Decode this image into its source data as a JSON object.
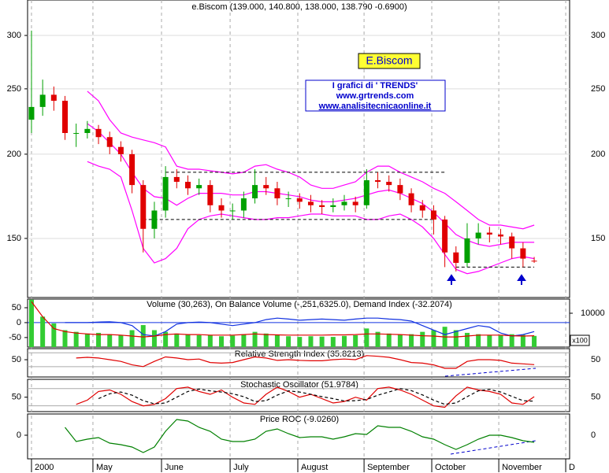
{
  "chart_data": [
    {
      "type": "candlestick",
      "title": "e.Biscom (139.000, 140.800, 138.000, 138.790 -0.6900)",
      "categories": [
        null,
        null,
        null,
        null,
        null,
        null,
        null,
        null,
        null,
        null,
        null,
        null,
        null,
        null,
        null,
        null,
        null,
        null,
        null,
        null,
        null,
        null,
        null,
        null,
        null,
        null,
        null,
        null,
        null,
        null,
        null,
        null,
        null,
        null,
        null,
        null,
        null,
        null,
        null,
        null,
        null,
        null,
        null,
        null,
        null,
        null
      ],
      "open": [
        225,
        235,
        245,
        240,
        215,
        215,
        218,
        212,
        205,
        200,
        180,
        155,
        165,
        185,
        182,
        178,
        180,
        168,
        165,
        165,
        172,
        180,
        178,
        172,
        172,
        170,
        168,
        167,
        168,
        170,
        168,
        183,
        182,
        180,
        175,
        168,
        165,
        160,
        143,
        138,
        150,
        153,
        152,
        151,
        145,
        139
      ],
      "high": [
        305,
        258,
        252,
        244,
        222,
        224,
        221,
        216,
        209,
        203,
        183,
        170,
        192,
        190,
        186,
        184,
        183,
        172,
        169,
        176,
        190,
        185,
        182,
        176,
        175,
        174,
        171,
        172,
        174,
        173,
        190,
        188,
        186,
        184,
        178,
        171,
        168,
        162,
        146,
        158,
        158,
        156,
        155,
        153,
        148,
        140.8
      ],
      "low": [
        215,
        228,
        232,
        210,
        205,
        211,
        207,
        200,
        195,
        175,
        143,
        150,
        161,
        178,
        174,
        174,
        164,
        161,
        160,
        161,
        169,
        174,
        168,
        167,
        166,
        164,
        163,
        164,
        165,
        164,
        166,
        178,
        176,
        171,
        164,
        161,
        152,
        136,
        134,
        136,
        147,
        148,
        147,
        140,
        136,
        138
      ],
      "close": [
        235,
        245,
        240,
        215,
        215,
        218,
        212,
        205,
        200,
        180,
        155,
        165,
        185,
        182,
        178,
        180,
        168,
        165,
        165,
        172,
        180,
        178,
        172,
        172,
        170,
        168,
        167,
        168,
        170,
        168,
        183,
        182,
        180,
        175,
        168,
        165,
        160,
        143,
        138,
        150,
        153,
        152,
        151,
        145,
        140,
        138.79
      ],
      "up_color": "#00a000",
      "down_color": "#e00000",
      "bands": {
        "color": "#ff00ff",
        "upper": [
          null,
          null,
          null,
          null,
          null,
          248,
          240,
          225,
          215,
          212,
          210,
          208,
          205,
          192,
          190,
          190,
          189,
          188,
          187,
          188,
          192,
          193,
          190,
          188,
          185,
          180,
          178,
          178,
          180,
          182,
          188,
          192,
          192,
          188,
          185,
          182,
          178,
          175,
          170,
          165,
          160,
          157,
          157,
          156,
          155,
          157
        ],
        "middle": [
          null,
          null,
          null,
          null,
          null,
          222,
          216,
          208,
          200,
          188,
          178,
          173,
          172,
          168,
          172,
          175,
          175,
          175,
          174,
          174,
          176,
          176,
          175,
          174,
          173,
          171,
          170,
          170,
          171,
          172,
          174,
          176,
          177,
          175,
          172,
          169,
          164,
          158,
          152,
          149,
          147,
          146,
          147,
          148,
          148,
          148
        ],
        "lower": [
          null,
          null,
          null,
          null,
          null,
          195,
          192,
          190,
          185,
          165,
          145,
          138,
          140,
          145,
          155,
          160,
          162,
          163,
          162,
          161,
          160,
          160,
          161,
          161,
          162,
          163,
          163,
          162,
          162,
          162,
          160,
          160,
          162,
          163,
          160,
          156,
          150,
          142,
          135,
          133,
          134,
          136,
          138,
          140,
          141,
          140
        ]
      },
      "levels": [
        {
          "value": 188,
          "from": 12,
          "to": 37
        },
        {
          "value": 160,
          "from": 10,
          "to": 36
        },
        {
          "value": 136,
          "from": 38,
          "to": 45
        }
      ],
      "level_color": "#000000",
      "ylim": [
        122.6,
        338.6
      ],
      "log": true,
      "yticks": [
        150,
        200,
        250,
        300
      ],
      "grid": true,
      "annotations": [
        "E.Biscom",
        "I grafici di ' TRENDS'",
        "www.grtrends.com",
        "www.analisitecnicaonline.it"
      ]
    },
    {
      "type": "indicator",
      "title": "Volume (30,263), On Balance Volume (-,251,6325.0), Demand Index (-32.2074)",
      "series": [
        {
          "kind": "bar",
          "axis": "y2",
          "color": "#33cc33",
          "values": [
            14000,
            9000,
            7000,
            5000,
            4500,
            4000,
            4200,
            3800,
            3500,
            5000,
            6500,
            5000,
            4500,
            4000,
            3800,
            3500,
            3600,
            3200,
            3400,
            3800,
            4500,
            4000,
            3500,
            3200,
            3000,
            3200,
            3100,
            3000,
            3300,
            3500,
            5500,
            4500,
            4000,
            3600,
            3800,
            4500,
            5000,
            6000,
            5000,
            4200,
            3800,
            3500,
            3400,
            3800,
            3600,
            3300
          ]
        },
        {
          "kind": "line",
          "color": "#1030e0",
          "values": [
            null,
            null,
            null,
            0,
            0,
            0,
            2,
            3,
            0,
            -10,
            -40,
            -45,
            -30,
            -5,
            0,
            2,
            0,
            -5,
            -10,
            -5,
            0,
            10,
            15,
            12,
            8,
            10,
            12,
            10,
            8,
            12,
            15,
            15,
            12,
            10,
            5,
            -10,
            -25,
            -40,
            -30,
            -20,
            -10,
            -15,
            -35,
            -45,
            -40,
            -30
          ]
        },
        {
          "kind": "line",
          "color": "#e00000",
          "values": [
            70,
            20,
            -20,
            -30,
            -35,
            -38,
            -40,
            -40,
            -42,
            -45,
            -48,
            -45,
            -40,
            -38,
            -40,
            -40,
            -42,
            -42,
            -42,
            -40,
            -38,
            -40,
            -41,
            -42,
            -42,
            -42,
            -42,
            -41,
            -41,
            -40,
            -38,
            -38,
            -39,
            -40,
            -42,
            -44,
            -45,
            -48,
            -48,
            -45,
            -42,
            -42,
            -42,
            -44,
            -45,
            -44
          ]
        }
      ],
      "zero_line_color": "#1030e0",
      "ylim": [
        -82,
        79
      ],
      "yticks": [
        -50,
        0,
        50
      ],
      "y2lim": [
        0,
        14186
      ],
      "y2ticks": [
        10000
      ],
      "y2_label": "x100"
    },
    {
      "type": "indicator",
      "title": "Relative Strength Index (35.8213)",
      "series": [
        {
          "kind": "line",
          "color": "#e00000",
          "values": [
            null,
            null,
            null,
            null,
            55,
            57,
            55,
            50,
            45,
            35,
            30,
            45,
            58,
            55,
            50,
            52,
            42,
            40,
            42,
            50,
            58,
            55,
            48,
            50,
            48,
            47,
            47,
            50,
            52,
            50,
            62,
            60,
            57,
            50,
            42,
            40,
            35,
            25,
            25,
            45,
            50,
            50,
            48,
            40,
            38,
            35.8213
          ]
        }
      ],
      "ylim": [
        0,
        82
      ],
      "yticks": [
        50
      ],
      "ref_lines": [
        70,
        30
      ]
    },
    {
      "type": "indicator",
      "title": "Stochastic Oscillator (51.9784)",
      "series": [
        {
          "kind": "line",
          "color": "#e00000",
          "values": [
            null,
            null,
            null,
            null,
            25,
            40,
            70,
            75,
            60,
            35,
            20,
            25,
            45,
            80,
            85,
            70,
            60,
            75,
            50,
            30,
            25,
            60,
            85,
            70,
            50,
            60,
            45,
            30,
            35,
            50,
            40,
            80,
            85,
            75,
            60,
            40,
            20,
            15,
            55,
            85,
            75,
            70,
            60,
            30,
            25,
            51.9784
          ]
        },
        {
          "kind": "line",
          "color": "#000000",
          "dash": true,
          "values": [
            null,
            null,
            null,
            null,
            null,
            null,
            45,
            62,
            68,
            57,
            38,
            27,
            30,
            50,
            70,
            78,
            72,
            68,
            62,
            52,
            35,
            38,
            57,
            72,
            68,
            60,
            52,
            45,
            37,
            38,
            42,
            57,
            68,
            80,
            73,
            58,
            40,
            25,
            30,
            52,
            72,
            77,
            68,
            53,
            38,
            36
          ]
        }
      ],
      "ylim": [
        0,
        112
      ],
      "yticks": [
        50
      ],
      "ref_lines": [
        80,
        20
      ]
    },
    {
      "type": "indicator",
      "title": "Price ROC (-9.0260)",
      "series": [
        {
          "kind": "line",
          "color": "#008000",
          "values": [
            null,
            null,
            null,
            10,
            -8,
            -5,
            -3,
            -10,
            -12,
            -15,
            -22,
            -15,
            5,
            20,
            18,
            10,
            5,
            -5,
            -8,
            -8,
            -5,
            5,
            8,
            2,
            -3,
            -2,
            -2,
            -5,
            -2,
            2,
            1,
            12,
            10,
            10,
            5,
            -2,
            -5,
            -12,
            -18,
            -12,
            -5,
            0,
            0,
            -3,
            -7,
            -9.026
          ]
        }
      ],
      "ylim": [
        -30,
        27
      ],
      "yticks": [
        0
      ],
      "xlim": [
        -0.35,
        48.17
      ],
      "xticks": [
        {
          "value": 0,
          "label": "2000"
        },
        {
          "value": 5.5,
          "label": "May"
        },
        {
          "value": 11.64,
          "label": "June"
        },
        {
          "value": 17.78,
          "label": "July"
        },
        {
          "value": 23.84,
          "label": "August"
        },
        {
          "value": 29.77,
          "label": "September"
        },
        {
          "value": 35.83,
          "label": "October"
        },
        {
          "value": 41.83,
          "label": "November"
        },
        {
          "value": 47.82,
          "label": "D"
        }
      ]
    }
  ]
}
